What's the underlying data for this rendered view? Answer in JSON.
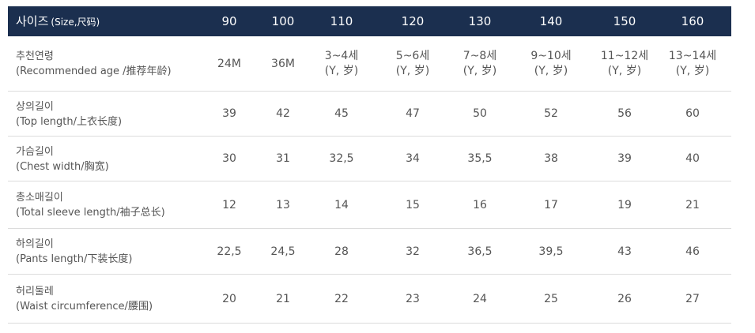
{
  "header": {
    "title": "사이즈",
    "subtitle": "(Size,尺码)",
    "sizes": [
      "90",
      "100",
      "110",
      "120",
      "130",
      "140",
      "150",
      "160"
    ]
  },
  "table": {
    "rows": [
      {
        "label": "추천연령",
        "sublabel": "(Recommended age /推荐年龄)",
        "cells": [
          [
            "24M"
          ],
          [
            "36M"
          ],
          [
            "3~4세",
            "(Y, 岁)"
          ],
          [
            "5~6세",
            "(Y, 岁)"
          ],
          [
            "7~8세",
            "(Y, 岁)"
          ],
          [
            "9~10세",
            "(Y, 岁)"
          ],
          [
            "11~12세",
            "(Y, 岁)"
          ],
          [
            "13~14세",
            "(Y, 岁)"
          ]
        ]
      },
      {
        "label": "상의길이",
        "sublabel": "(Top length/上衣长度)",
        "cells": [
          [
            "39"
          ],
          [
            "42"
          ],
          [
            "45"
          ],
          [
            "47"
          ],
          [
            "50"
          ],
          [
            "52"
          ],
          [
            "56"
          ],
          [
            "60"
          ]
        ]
      },
      {
        "label": "가슴길이",
        "sublabel": "(Chest width/胸宽)",
        "cells": [
          [
            "30"
          ],
          [
            "31"
          ],
          [
            "32,5"
          ],
          [
            "34"
          ],
          [
            "35,5"
          ],
          [
            "38"
          ],
          [
            "39"
          ],
          [
            "40"
          ]
        ]
      },
      {
        "label": "총소매길이",
        "sublabel": "(Total sleeve length/袖子总长)",
        "cells": [
          [
            "12"
          ],
          [
            "13"
          ],
          [
            "14"
          ],
          [
            "15"
          ],
          [
            "16"
          ],
          [
            "17"
          ],
          [
            "19"
          ],
          [
            "21"
          ]
        ]
      },
      {
        "label": "하의길이",
        "sublabel": "(Pants length/下装长度)",
        "cells": [
          [
            "22,5"
          ],
          [
            "24,5"
          ],
          [
            "28"
          ],
          [
            "32"
          ],
          [
            "36,5"
          ],
          [
            "39,5"
          ],
          [
            "43"
          ],
          [
            "46"
          ]
        ]
      },
      {
        "label": "허리둘레",
        "sublabel": "(Waist circumference/腰围)",
        "cells": [
          [
            "20"
          ],
          [
            "21"
          ],
          [
            "22"
          ],
          [
            "23"
          ],
          [
            "24"
          ],
          [
            "25"
          ],
          [
            "26"
          ],
          [
            "27"
          ]
        ]
      }
    ]
  }
}
